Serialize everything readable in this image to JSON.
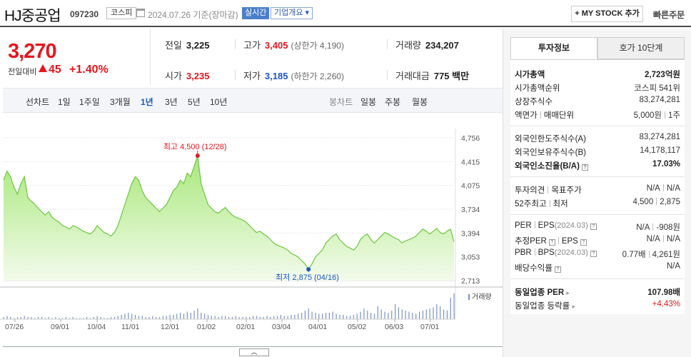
{
  "header": {
    "name": "HJ중공업",
    "code": "097230",
    "market": "코스피",
    "date": "2024.07.26 기준(장마감)",
    "realtime": "실시간",
    "overview": "기업개요 ▾",
    "mystock": "+ MY STOCK 추가",
    "quick_order": "빠른주문"
  },
  "price": {
    "current": "3,270",
    "change_label": "전일대비",
    "change": "45",
    "change_pct": "+1.40%"
  },
  "stats": {
    "prev_label": "전일",
    "prev": "3,225",
    "high_label": "고가",
    "high": "3,405",
    "upper_limit": "(상한가 4,190)",
    "volume_label": "거래량",
    "volume": "234,207",
    "open_label": "시가",
    "open": "3,235",
    "low_label": "저가",
    "low": "3,185",
    "lower_limit": "(하한가 2,260)",
    "amount_label": "거래대금",
    "amount": "775 백만"
  },
  "periods": {
    "line_label": "선차트",
    "line_items": [
      "1일",
      "1주일",
      "3개월",
      "1년",
      "3년",
      "5년",
      "10년"
    ],
    "selected": "1년",
    "candle_label": "봉차트",
    "candle_items": [
      "일봉",
      "주봉",
      "월봉"
    ]
  },
  "chart_data": {
    "type": "area",
    "y_ticks": [
      "4,756",
      "4,415",
      "4,075",
      "3,734",
      "3,394",
      "3,053",
      "2,713"
    ],
    "ylim": [
      2713,
      4756
    ],
    "x_ticks": [
      "07/26",
      "09/01",
      "10/04",
      "11/01",
      "12/01",
      "01/02",
      "02/01",
      "03/04",
      "04/01",
      "05/02",
      "06/03",
      "07/01"
    ],
    "high_annotation": "최고 4,500 (12/28)",
    "low_annotation": "최저 2,875 (04/16)",
    "volume_label": "거래량",
    "values": [
      4150,
      4280,
      4200,
      4050,
      3950,
      4100,
      4200,
      3900,
      3850,
      3800,
      3750,
      3700,
      3650,
      3700,
      3620,
      3580,
      3550,
      3500,
      3480,
      3450,
      3500,
      3480,
      3450,
      3420,
      3400,
      3380,
      3420,
      3500,
      3450,
      3400,
      3380,
      3350,
      3400,
      3500,
      3650,
      3800,
      3950,
      4100,
      4200,
      4150,
      4000,
      3900,
      3850,
      3800,
      3750,
      3700,
      3750,
      3800,
      3900,
      4000,
      4050,
      4150,
      4100,
      4250,
      4200,
      4350,
      4500,
      4100,
      3950,
      3800,
      3750,
      3700,
      3680,
      3720,
      3760,
      3700,
      3650,
      3620,
      3600,
      3580,
      3550,
      3500,
      3450,
      3400,
      3420,
      3380,
      3350,
      3300,
      3250,
      3220,
      3200,
      3180,
      3150,
      3100,
      3080,
      3050,
      3000,
      2950,
      2875,
      2950,
      3050,
      3100,
      3150,
      3250,
      3300,
      3350,
      3380,
      3300,
      3250,
      3200,
      3180,
      3150,
      3200,
      3300,
      3350,
      3380,
      3300,
      3250,
      3300,
      3350,
      3400,
      3380,
      3350,
      3320,
      3300,
      3250,
      3280,
      3300,
      3320,
      3350,
      3400,
      3450,
      3420,
      3380,
      3420,
      3460,
      3400,
      3380,
      3420,
      3450,
      3270
    ],
    "volume": [
      2,
      3,
      2,
      1,
      2,
      2,
      3,
      2,
      2,
      1,
      2,
      2,
      1,
      2,
      1,
      2,
      1,
      1,
      2,
      1,
      2,
      1,
      1,
      1,
      2,
      1,
      2,
      3,
      2,
      1,
      1,
      2,
      2,
      3,
      4,
      5,
      6,
      5,
      4,
      3,
      3,
      2,
      2,
      3,
      2,
      2,
      3,
      3,
      4,
      4,
      5,
      6,
      5,
      7,
      6,
      8,
      10,
      6,
      5,
      4,
      3,
      3,
      2,
      3,
      3,
      2,
      2,
      3,
      2,
      2,
      2,
      2,
      3,
      3,
      2,
      2,
      3,
      2,
      3,
      3,
      4,
      3,
      3,
      4,
      4,
      5,
      6,
      8,
      10,
      7,
      6,
      5,
      5,
      6,
      6,
      7,
      5,
      4,
      4,
      3,
      3,
      4,
      5,
      7,
      10,
      8,
      6,
      5,
      12,
      9,
      7,
      6,
      8,
      14,
      11,
      9,
      8,
      7,
      6,
      5,
      7,
      8,
      9,
      10,
      11,
      14,
      12,
      9,
      8,
      20,
      24
    ]
  },
  "side": {
    "tab_active": "투자정보",
    "tab_other": "호가 10단계",
    "rows": [
      {
        "k": "시가총액",
        "v": "2,723억원"
      },
      {
        "k": "시가총액순위",
        "v": "코스피 541위"
      },
      {
        "k": "상장주식수",
        "v": "83,274,281"
      },
      {
        "k1": "액면가",
        "k2": "매매단위",
        "v1": "5,000원",
        "v2": "1주"
      },
      {
        "k": "외국인한도주식수(A)",
        "v": "83,274,281"
      },
      {
        "k": "외국인보유주식수(B)",
        "v": "14,178,117"
      },
      {
        "k": "외국인소진율(B/A)",
        "v": "17.03%"
      },
      {
        "k1": "투자의견",
        "k2": "목표주가",
        "v1": "N/A",
        "v2": "N/A"
      },
      {
        "k1": "52주최고",
        "k2": "최저",
        "v1": "4,500",
        "v2": "2,875"
      },
      {
        "k1": "PER",
        "k2": "EPS",
        "k2s": "(2024.03)",
        "v1": "N/A",
        "v2": "-908원"
      },
      {
        "k1": "추정PER",
        "k2": "EPS",
        "v1": "N/A",
        "v2": "N/A"
      },
      {
        "k1": "PBR",
        "k2": "BPS",
        "k2s": "(2024.03)",
        "v1": "0.77배",
        "v2": "4,261원"
      },
      {
        "k": "배당수익률",
        "v": "N/A"
      },
      {
        "k": "동일업종 PER",
        "v": "107.98배"
      },
      {
        "k": "동일업종 등락률",
        "v": "+4.43%"
      }
    ]
  }
}
